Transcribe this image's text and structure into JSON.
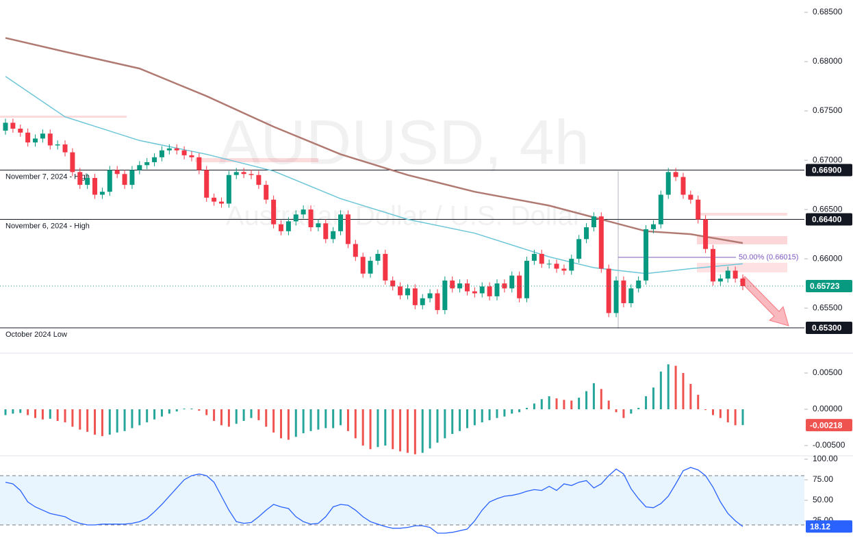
{
  "chart_data": [
    {
      "type": "candlestick",
      "title": "AUDUSD, 4h",
      "subtitle": "Australian Dollar / U.S. Dollar",
      "first_open": 0.673,
      "close": [
        0.6738,
        0.6732,
        0.6728,
        0.6718,
        0.6722,
        0.6727,
        0.6715,
        0.6716,
        0.6708,
        0.6688,
        0.6675,
        0.6682,
        0.6665,
        0.6668,
        0.669,
        0.6686,
        0.6675,
        0.669,
        0.6695,
        0.6698,
        0.6703,
        0.671,
        0.6712,
        0.671,
        0.6705,
        0.6703,
        0.669,
        0.6662,
        0.6658,
        0.6656,
        0.6685,
        0.6688,
        0.6686,
        0.6685,
        0.6675,
        0.666,
        0.6635,
        0.6628,
        0.6638,
        0.6645,
        0.665,
        0.6632,
        0.6636,
        0.662,
        0.6628,
        0.6645,
        0.6615,
        0.6602,
        0.6585,
        0.6598,
        0.6605,
        0.6578,
        0.6572,
        0.6563,
        0.657,
        0.6553,
        0.656,
        0.6565,
        0.6548,
        0.6578,
        0.657,
        0.6575,
        0.6567,
        0.6565,
        0.6572,
        0.6562,
        0.6575,
        0.657,
        0.6583,
        0.656,
        0.6598,
        0.6605,
        0.6595,
        0.6595,
        0.659,
        0.6588,
        0.66,
        0.662,
        0.6632,
        0.6643,
        0.659,
        0.6545,
        0.6578,
        0.6555,
        0.657,
        0.6578,
        0.663,
        0.6635,
        0.6665,
        0.6688,
        0.6683,
        0.6665,
        0.666,
        0.664,
        0.661,
        0.6577,
        0.658,
        0.6588,
        0.658,
        0.65723
      ],
      "up_color": "#089981",
      "down_color": "#f23645",
      "last_color": "#089981",
      "ylim": [
        0.6505,
        0.68625
      ],
      "yticks": [
        {
          "value": 0.655,
          "label": "0.65500"
        },
        {
          "value": 0.66,
          "label": "0.66000"
        },
        {
          "value": 0.665,
          "label": "0.66500"
        },
        {
          "value": 0.67,
          "label": "0.67000"
        },
        {
          "value": 0.675,
          "label": "0.67500"
        },
        {
          "value": 0.68,
          "label": "0.68000"
        },
        {
          "value": 0.685,
          "label": "0.68500"
        }
      ],
      "moving_averages": [
        {
          "color": "#b07a72",
          "x": [
            0,
            8,
            18,
            27,
            36,
            45,
            54,
            63,
            73,
            79,
            86,
            92,
            99
          ],
          "values": [
            0.6824,
            0.681,
            0.6793,
            0.6765,
            0.6734,
            0.6706,
            0.6685,
            0.6668,
            0.6654,
            0.6642,
            0.6628,
            0.6625,
            0.6616
          ]
        },
        {
          "color": "#6cc6d8",
          "x": [
            0,
            8,
            18,
            27,
            36,
            45,
            54,
            63,
            73,
            79,
            86,
            92,
            99
          ],
          "values": [
            0.6785,
            0.6744,
            0.672,
            0.6706,
            0.6689,
            0.6661,
            0.664,
            0.6626,
            0.6602,
            0.6591,
            0.6585,
            0.659,
            0.6595
          ]
        }
      ],
      "levels": [
        {
          "name": "November 7, 2024 - High",
          "value": 0.669,
          "label": "0.66900"
        },
        {
          "name": "November 6, 2024 - High",
          "value": 0.664,
          "label": "0.66400"
        },
        {
          "name": "October 2024 Low",
          "value": 0.653,
          "label": "0.65300"
        }
      ],
      "fib": {
        "label": "50.00% (0.66015)",
        "value": 0.66015,
        "color": "#7e57c2"
      }
    },
    {
      "type": "bar",
      "values": [
        -0.0008,
        -0.0006,
        -0.0005,
        -0.0008,
        -0.0012,
        -0.0014,
        -0.0013,
        -0.0016,
        -0.0018,
        -0.0024,
        -0.0028,
        -0.0031,
        -0.0035,
        -0.0037,
        -0.0035,
        -0.0032,
        -0.003,
        -0.0026,
        -0.0022,
        -0.0018,
        -0.0014,
        -0.001,
        -0.0006,
        -0.0003,
        0.0001,
        0.0001,
        -0.0002,
        -0.0008,
        -0.0016,
        -0.0022,
        -0.0024,
        -0.002,
        -0.0016,
        -0.0012,
        -0.0015,
        -0.0024,
        -0.0032,
        -0.004,
        -0.0042,
        -0.0038,
        -0.0033,
        -0.003,
        -0.0028,
        -0.0026,
        -0.0026,
        -0.0022,
        -0.003,
        -0.004,
        -0.005,
        -0.0055,
        -0.0052,
        -0.005,
        -0.0055,
        -0.0058,
        -0.006,
        -0.0062,
        -0.006,
        -0.0054,
        -0.0046,
        -0.004,
        -0.0034,
        -0.003,
        -0.0026,
        -0.0022,
        -0.0018,
        -0.0015,
        -0.0012,
        -0.001,
        -0.0006,
        -0.0004,
        0.0002,
        0.0008,
        0.0014,
        0.0018,
        0.0015,
        0.0013,
        0.0012,
        0.0016,
        0.0025,
        0.0036,
        0.0028,
        0.0012,
        -0.0004,
        -0.0012,
        -0.0006,
        0.0002,
        0.0018,
        0.003,
        0.0052,
        0.0062,
        0.006,
        0.005,
        0.0035,
        0.002,
        -0.0001,
        -0.0008,
        -0.0012,
        -0.0018,
        -0.0022,
        -0.00218
      ],
      "up_color": "#26a69a",
      "down_color": "#ef5350",
      "ylim": [
        -0.00632,
        0.00755
      ],
      "yticks": [
        {
          "value": -0.005,
          "label": "-0.00500"
        },
        {
          "value": 0,
          "label": "0.00000"
        },
        {
          "value": 0.005,
          "label": "0.00500"
        }
      ]
    },
    {
      "type": "line",
      "values": [
        72,
        70,
        62,
        48,
        42,
        38,
        34,
        32,
        30,
        25,
        22,
        20,
        20,
        21,
        21,
        21,
        21,
        22,
        24,
        28,
        36,
        45,
        55,
        65,
        75,
        80,
        82,
        80,
        72,
        55,
        38,
        24,
        22,
        23,
        30,
        38,
        45,
        42,
        40,
        30,
        24,
        21,
        22,
        30,
        42,
        45,
        44,
        38,
        30,
        24,
        21,
        18,
        16,
        16,
        17,
        19,
        19,
        17,
        10,
        10,
        11,
        13,
        15,
        25,
        38,
        48,
        52,
        55,
        56,
        58,
        61,
        63,
        62,
        67,
        62,
        70,
        68,
        72,
        74,
        65,
        70,
        80,
        88,
        82,
        64,
        52,
        42,
        41,
        46,
        55,
        70,
        86,
        90,
        87,
        80,
        66,
        48,
        34,
        25,
        18.12
      ],
      "color": "#2962ff",
      "band": [
        20,
        80
      ],
      "ylim": [
        1.7,
        103.3
      ],
      "yticks": [
        {
          "value": 25,
          "label": "25.00"
        },
        {
          "value": 50,
          "label": "50.00"
        },
        {
          "value": 75,
          "label": "75.00"
        },
        {
          "value": 100,
          "label": "100.00"
        }
      ]
    }
  ]
}
